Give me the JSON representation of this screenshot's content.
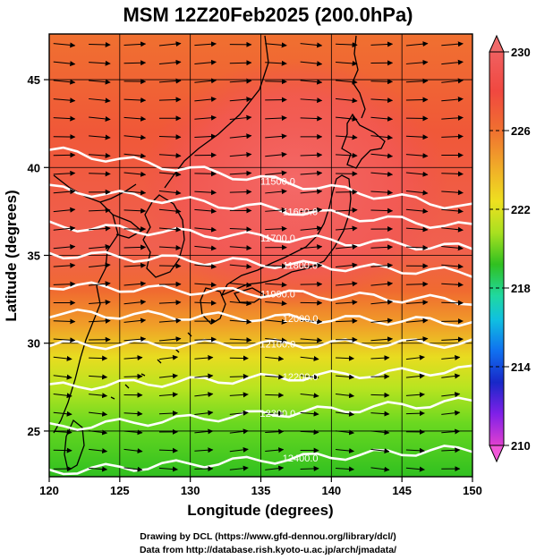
{
  "title": "MSM 12Z20Feb2025 (200.0hPa)",
  "axes": {
    "xlabel": "Longitude (degrees)",
    "ylabel": "Latitude  (degrees)",
    "x_ticks": [
      "120",
      "125",
      "130",
      "135",
      "140",
      "145",
      "150"
    ],
    "y_ticks": [
      "25",
      "30",
      "35",
      "40",
      "45"
    ]
  },
  "colorbar": {
    "min": 210,
    "max": 230,
    "tick_labels": [
      "230",
      "226",
      "222",
      "218",
      "214",
      "210"
    ]
  },
  "contour_labels": [
    "11500.0",
    "11600.0",
    "11700.0",
    "11800.0",
    "11900.0",
    "12000.0",
    "12100.0",
    "12200.0",
    "12300.0",
    "12400.0"
  ],
  "credits": {
    "line1": "Drawing by DCL (https://www.gfd-dennou.org/library/dcl/)",
    "line2": "Data from http://database.rish.kyoto-u.ac.jp/arch/jmadata/"
  },
  "chart_data": {
    "type": "heatmap",
    "title": "MSM 12Z20Feb2025 (200.0hPa)",
    "xlabel": "Longitude (degrees)",
    "ylabel": "Latitude  (degrees)",
    "xlim": [
      120,
      150
    ],
    "ylim": [
      22.4,
      47.6
    ],
    "color_range": [
      210,
      230
    ],
    "colors": {
      "210": "#e040d0",
      "212": "#a020f0",
      "214": "#2020c0",
      "216": "#1060f0",
      "218": "#10b0d8",
      "220": "#20d8a0",
      "222": "#20c020",
      "224": "#88e020",
      "225": "#ccec20",
      "226": "#f0e020",
      "227": "#f0a028",
      "228": "#f06830",
      "229": "#f04840",
      "230": "#f06060"
    },
    "contours": [
      {
        "label": "11500.0",
        "lat_at_120": 41.0,
        "lat_at_150": 37.7
      },
      {
        "label": "11600.0",
        "lat_at_120": 38.8,
        "lat_at_150": 36.6
      },
      {
        "label": "11700.0",
        "lat_at_120": 36.7,
        "lat_at_150": 35.4
      },
      {
        "label": "11800.0",
        "lat_at_120": 35.1,
        "lat_at_150": 34.0
      },
      {
        "label": "11900.0",
        "lat_at_120": 33.3,
        "lat_at_150": 32.4
      },
      {
        "label": "12000.0",
        "lat_at_120": 31.7,
        "lat_at_150": 31.2
      },
      {
        "label": "12100.0",
        "lat_at_120": 29.9,
        "lat_at_150": 30.0
      },
      {
        "label": "12200.0",
        "lat_at_120": 27.5,
        "lat_at_150": 28.5
      },
      {
        "label": "12300.0",
        "lat_at_120": 25.2,
        "lat_at_150": 26.7
      },
      {
        "label": "12400.0",
        "lat_at_120": 22.7,
        "lat_at_150": 24.0
      }
    ],
    "wind": "westerly",
    "grid": true
  }
}
